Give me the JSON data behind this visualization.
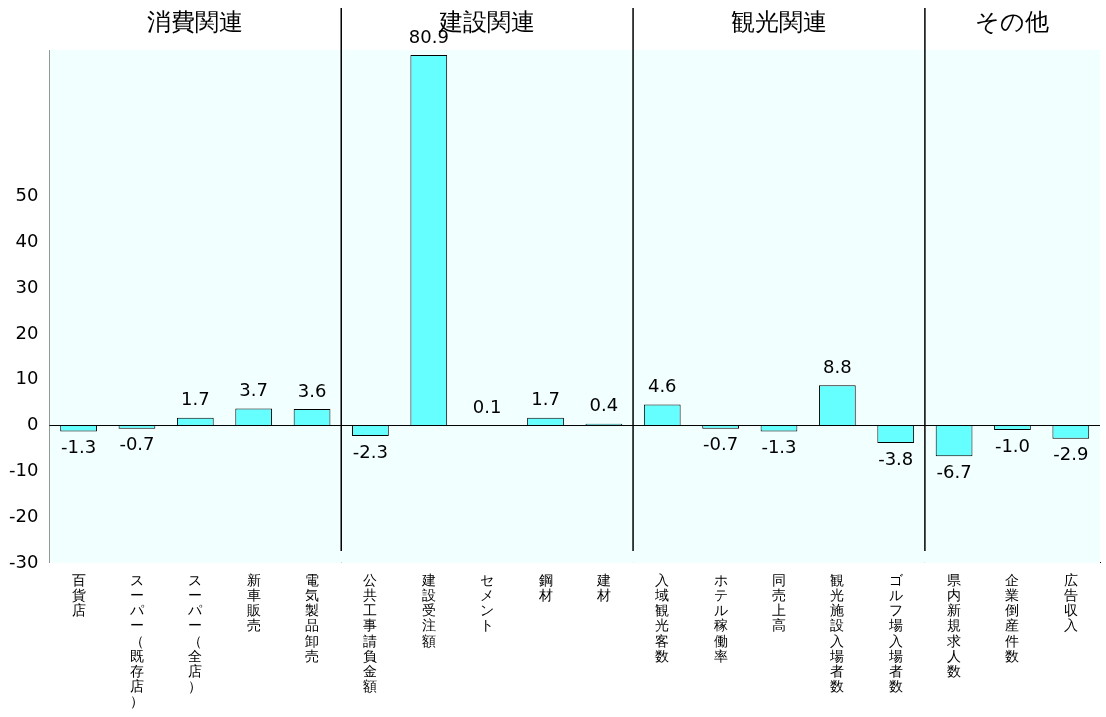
{
  "chart_data": {
    "type": "bar",
    "categories": [
      "百貨店",
      "スーパー（既存店）",
      "スーパー（全店）",
      "新車販売",
      "電気製品卸売",
      "公共工事請負金額",
      "建設受注額",
      "セメント",
      "鋼材",
      "建材",
      "入域観光客数",
      "ホテル稼働率",
      "同売上高",
      "観光施設入場者数",
      "ゴルフ場入場者数",
      "県内新規求人数",
      "企業倒産件数",
      "広告収入"
    ],
    "values": [
      -1.3,
      -0.7,
      1.7,
      3.7,
      3.6,
      -2.3,
      80.9,
      0.1,
      1.7,
      0.4,
      4.6,
      -0.7,
      -1.3,
      8.8,
      -3.8,
      -6.7,
      -1.0,
      -2.9
    ],
    "color": "#66ffff",
    "ylim": [
      -30,
      82
    ],
    "yticks": [
      -30,
      -20,
      -10,
      0,
      10,
      20,
      30,
      40,
      50
    ],
    "value_labels": [
      "-1.3",
      "-0.7",
      "1.7",
      "3.7",
      "3.6",
      "-2.3",
      "80.9",
      "0.1",
      "1.7",
      "0.4",
      "4.6",
      "-0.7",
      "-1.3",
      "8.8",
      "-3.8",
      "-6.7",
      "-1.0",
      "-2.9"
    ],
    "bands": [
      {
        "axis": "x",
        "from": "百貨店",
        "to": "電気製品卸売",
        "label": "消費関連",
        "color": "#f2ffff"
      },
      {
        "axis": "x",
        "from": "公共工事請負金額",
        "to": "建材",
        "label": "建設関連",
        "color": "#f2ffff"
      },
      {
        "axis": "x",
        "from": "入域観光客数",
        "to": "ゴルフ場入場者数",
        "label": "観光関連",
        "color": "#f2ffff"
      },
      {
        "axis": "x",
        "from": "県内新規求人数",
        "to": "広告収入",
        "label": "その他",
        "color": "#f2ffff"
      }
    ]
  }
}
